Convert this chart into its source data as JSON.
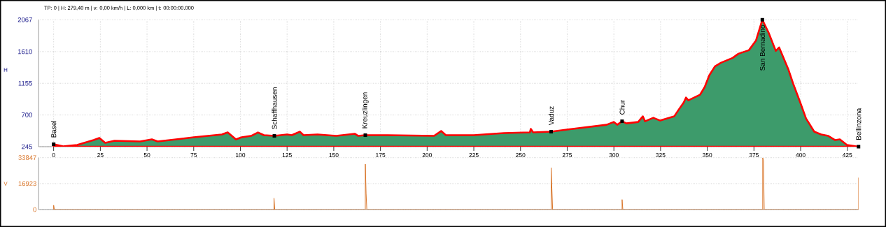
{
  "chart_data": [
    {
      "type": "area",
      "title": "TP: 0 | H: 279,40 m | v: 0,00 km/h | L: 0,000 km | t: 00:00:00.000",
      "ylabel": "H",
      "x": [
        0,
        5.1,
        12.6,
        21.4,
        24.5,
        27.6,
        32.6,
        46.3,
        52.6,
        55.7,
        75.1,
        90.1,
        93.2,
        97.6,
        100.7,
        105.7,
        109.4,
        112.6,
        118.2,
        125,
        127.5,
        131.9,
        133.8,
        141.3,
        151.3,
        161.3,
        163.1,
        166.9,
        178.7,
        203.7,
        207.5,
        210,
        225,
        241.2,
        255,
        255.5,
        256.8,
        266.4,
        274.9,
        296.1,
        299.9,
        301.8,
        304.4,
        306.7,
        313,
        315.5,
        316.7,
        321.1,
        324.8,
        332.3,
        334.8,
        337.4,
        338.6,
        339.9,
        346.1,
        348.6,
        351.1,
        354.2,
        357.3,
        363.6,
        366.7,
        372.3,
        376.1,
        379.5,
        382.9,
        386.7,
        388.5,
        393.5,
        396,
        399.8,
        402.9,
        407.3,
        411,
        414.8,
        418.5,
        421,
        424.8,
        431
      ],
      "series": [
        {
          "color": "#3d9b6b",
          "values": [
            280,
            250,
            270,
            340,
            370,
            300,
            330,
            320,
            350,
            320,
            380,
            420,
            450,
            350,
            380,
            400,
            450,
            410,
            400,
            420,
            410,
            460,
            410,
            420,
            400,
            430,
            400,
            410,
            410,
            400,
            470,
            410,
            410,
            440,
            450,
            500,
            450,
            460,
            490,
            560,
            600,
            560,
            610,
            580,
            600,
            680,
            610,
            660,
            620,
            680,
            780,
            880,
            950,
            910,
            990,
            1100,
            1270,
            1400,
            1450,
            1520,
            1580,
            1630,
            1770,
            2067,
            1880,
            1620,
            1670,
            1350,
            1150,
            880,
            650,
            460,
            420,
            400,
            340,
            350,
            270,
            245
          ]
        }
      ],
      "xlim": [
        -8,
        431
      ],
      "ylim": [
        245,
        2067
      ],
      "xticks": [
        0,
        25,
        50,
        75,
        100,
        125,
        150,
        175,
        200,
        225,
        250,
        275,
        300,
        325,
        350,
        375,
        400,
        425
      ],
      "yticks": [
        245,
        700,
        1155,
        1610,
        2067
      ],
      "grid": true,
      "annotations": [
        {
          "text": "Basel",
          "x": 0,
          "y": 280
        },
        {
          "text": "Schaffhausen",
          "x": 118.2,
          "y": 400
        },
        {
          "text": "Kreuzlingen",
          "x": 166.9,
          "y": 410
        },
        {
          "text": "Vaduz",
          "x": 266.4,
          "y": 460
        },
        {
          "text": "Chur",
          "x": 304.4,
          "y": 610
        },
        {
          "text": "San Bernadino",
          "x": 379.5,
          "y": 2067
        },
        {
          "text": "Bellinzona",
          "x": 431,
          "y": 245
        }
      ]
    },
    {
      "type": "line",
      "ylabel": "V",
      "series": [
        {
          "color": "#d9762b",
          "x": [
            0,
            0,
            0.4,
            118,
            118,
            118.4,
            166.9,
            166.9,
            167.3,
            167.7,
            266.4,
            266.4,
            266.8,
            267.2,
            304.4,
            304.4,
            304.8,
            379.7,
            379.7,
            380.1,
            380.5,
            431,
            431
          ],
          "values": [
            0,
            2800,
            0,
            0,
            7400,
            0,
            0,
            29600,
            10800,
            0,
            0,
            27300,
            13400,
            0,
            0,
            6500,
            0,
            0,
            33800,
            31800,
            0,
            0,
            20800
          ]
        }
      ],
      "xlim": [
        -8,
        431
      ],
      "ylim": [
        0,
        33847
      ],
      "yticks": [
        0,
        16923,
        33847
      ],
      "grid": "y",
      "tick_labels": "y"
    }
  ]
}
